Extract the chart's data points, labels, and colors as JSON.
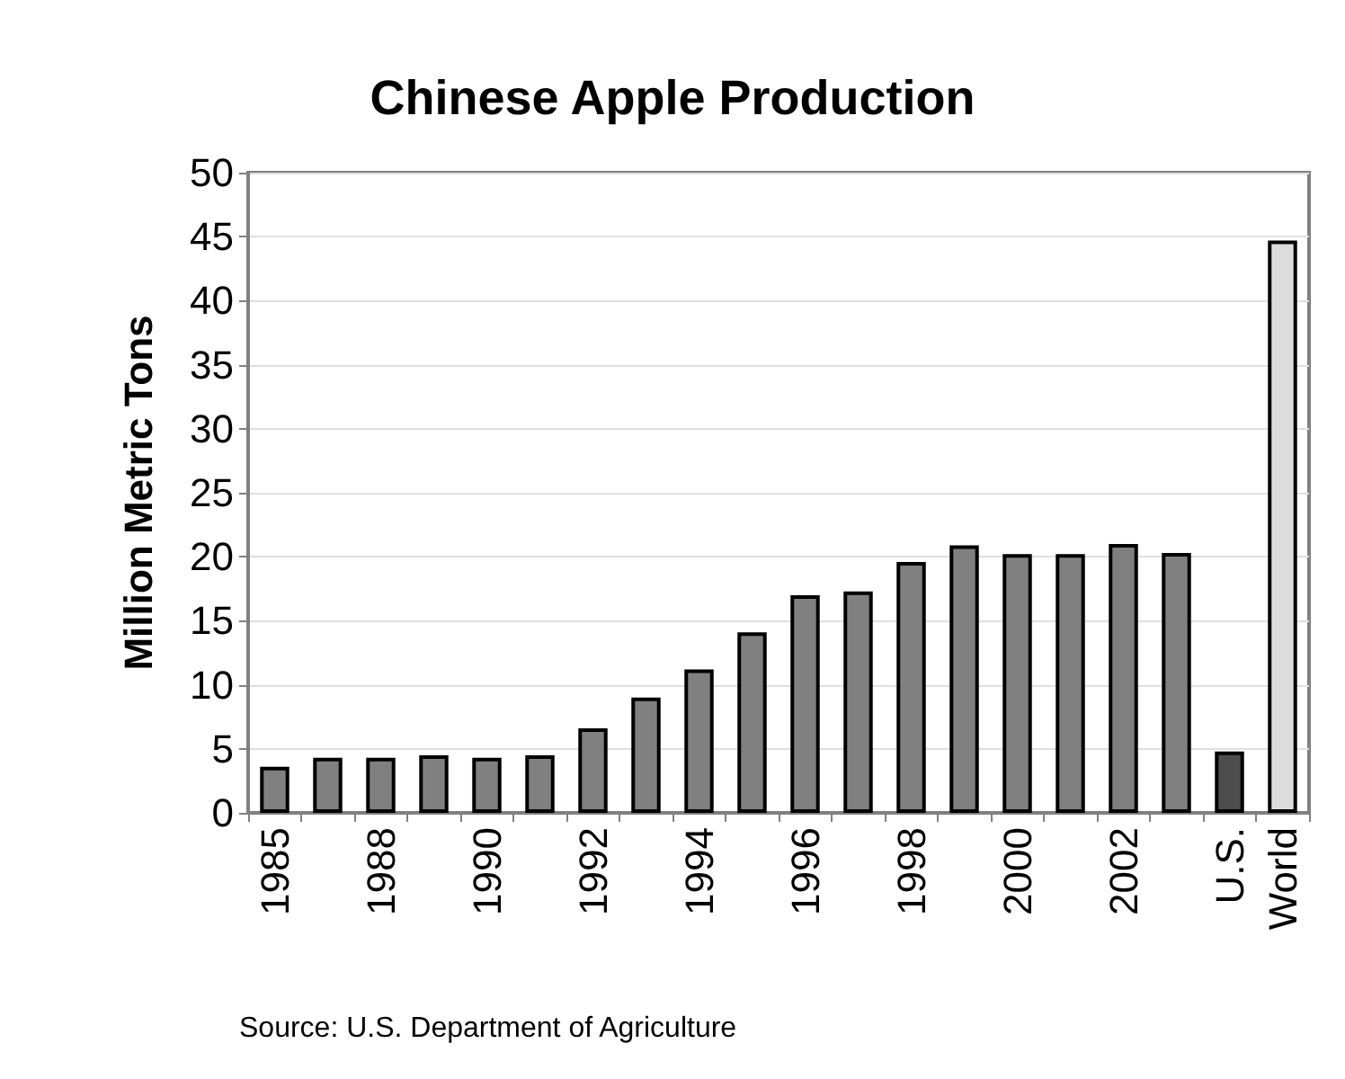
{
  "chart_data": {
    "type": "bar",
    "title": "Chinese Apple Production",
    "ylabel": "Million Metric Tons",
    "categories": [
      "1985",
      null,
      "1988",
      null,
      "1990",
      null,
      "1992",
      null,
      "1994",
      null,
      "1996",
      null,
      "1998",
      null,
      "2000",
      null,
      "2002",
      null,
      "U.S.",
      "World"
    ],
    "values": [
      3.6,
      4.3,
      4.3,
      4.5,
      4.3,
      4.5,
      6.6,
      9.0,
      11.2,
      14.1,
      17.0,
      17.3,
      19.6,
      20.9,
      20.2,
      20.2,
      21.0,
      20.3,
      4.8,
      44.7
    ],
    "colors": [
      "#808080",
      "#808080",
      "#808080",
      "#808080",
      "#808080",
      "#808080",
      "#808080",
      "#808080",
      "#808080",
      "#808080",
      "#808080",
      "#808080",
      "#808080",
      "#808080",
      "#808080",
      "#808080",
      "#808080",
      "#808080",
      "#4d4d4d",
      "#dcdcdc"
    ],
    "ylim": [
      0,
      50
    ],
    "yticks": [
      0,
      5,
      10,
      15,
      20,
      25,
      30,
      35,
      40,
      45,
      50
    ],
    "grid": "y",
    "annotations": [
      "Source: U.S. Department of Agriculture"
    ]
  }
}
